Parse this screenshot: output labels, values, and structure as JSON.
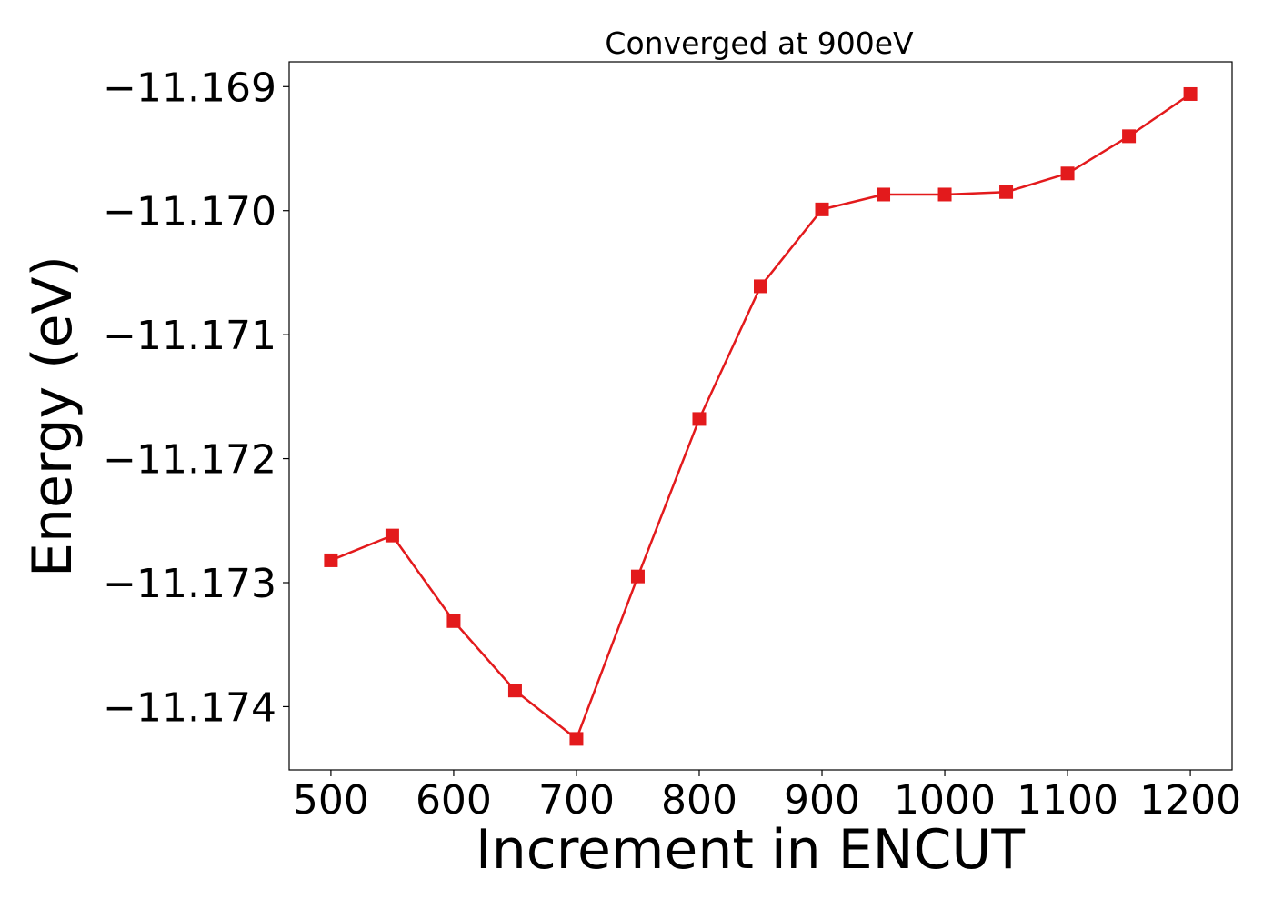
{
  "chart_data": {
    "type": "line",
    "title": "Converged at 900eV",
    "xlabel": "Increment in ENCUT",
    "ylabel": "Energy (eV)",
    "x": [
      500,
      550,
      600,
      650,
      700,
      750,
      800,
      850,
      900,
      950,
      1000,
      1050,
      1100,
      1150,
      1200
    ],
    "series": [
      {
        "values": [
          -11.17282,
          -11.17262,
          -11.17331,
          -11.17387,
          -11.17426,
          -11.17295,
          -11.17168,
          -11.17061,
          -11.16999,
          -11.16987,
          -11.16987,
          -11.16985,
          -11.1697,
          -11.1694,
          -11.16906
        ],
        "color": "#e31a1c",
        "marker": "square"
      }
    ],
    "xticks": [
      500,
      600,
      700,
      800,
      900,
      1000,
      1100,
      1200
    ],
    "xtick_labels": [
      "500",
      "600",
      "700",
      "800",
      "900",
      "1000",
      "1100",
      "1200"
    ],
    "yticks": [
      -11.174,
      -11.173,
      -11.172,
      -11.171,
      -11.17,
      -11.169
    ],
    "ytick_labels": [
      "−11.174",
      "−11.173",
      "−11.172",
      "−11.171",
      "−11.170",
      "−11.169"
    ],
    "xlim": [
      466,
      1234
    ],
    "ylim": [
      -11.17451,
      -11.1688
    ],
    "grid": false,
    "legend": "none"
  }
}
